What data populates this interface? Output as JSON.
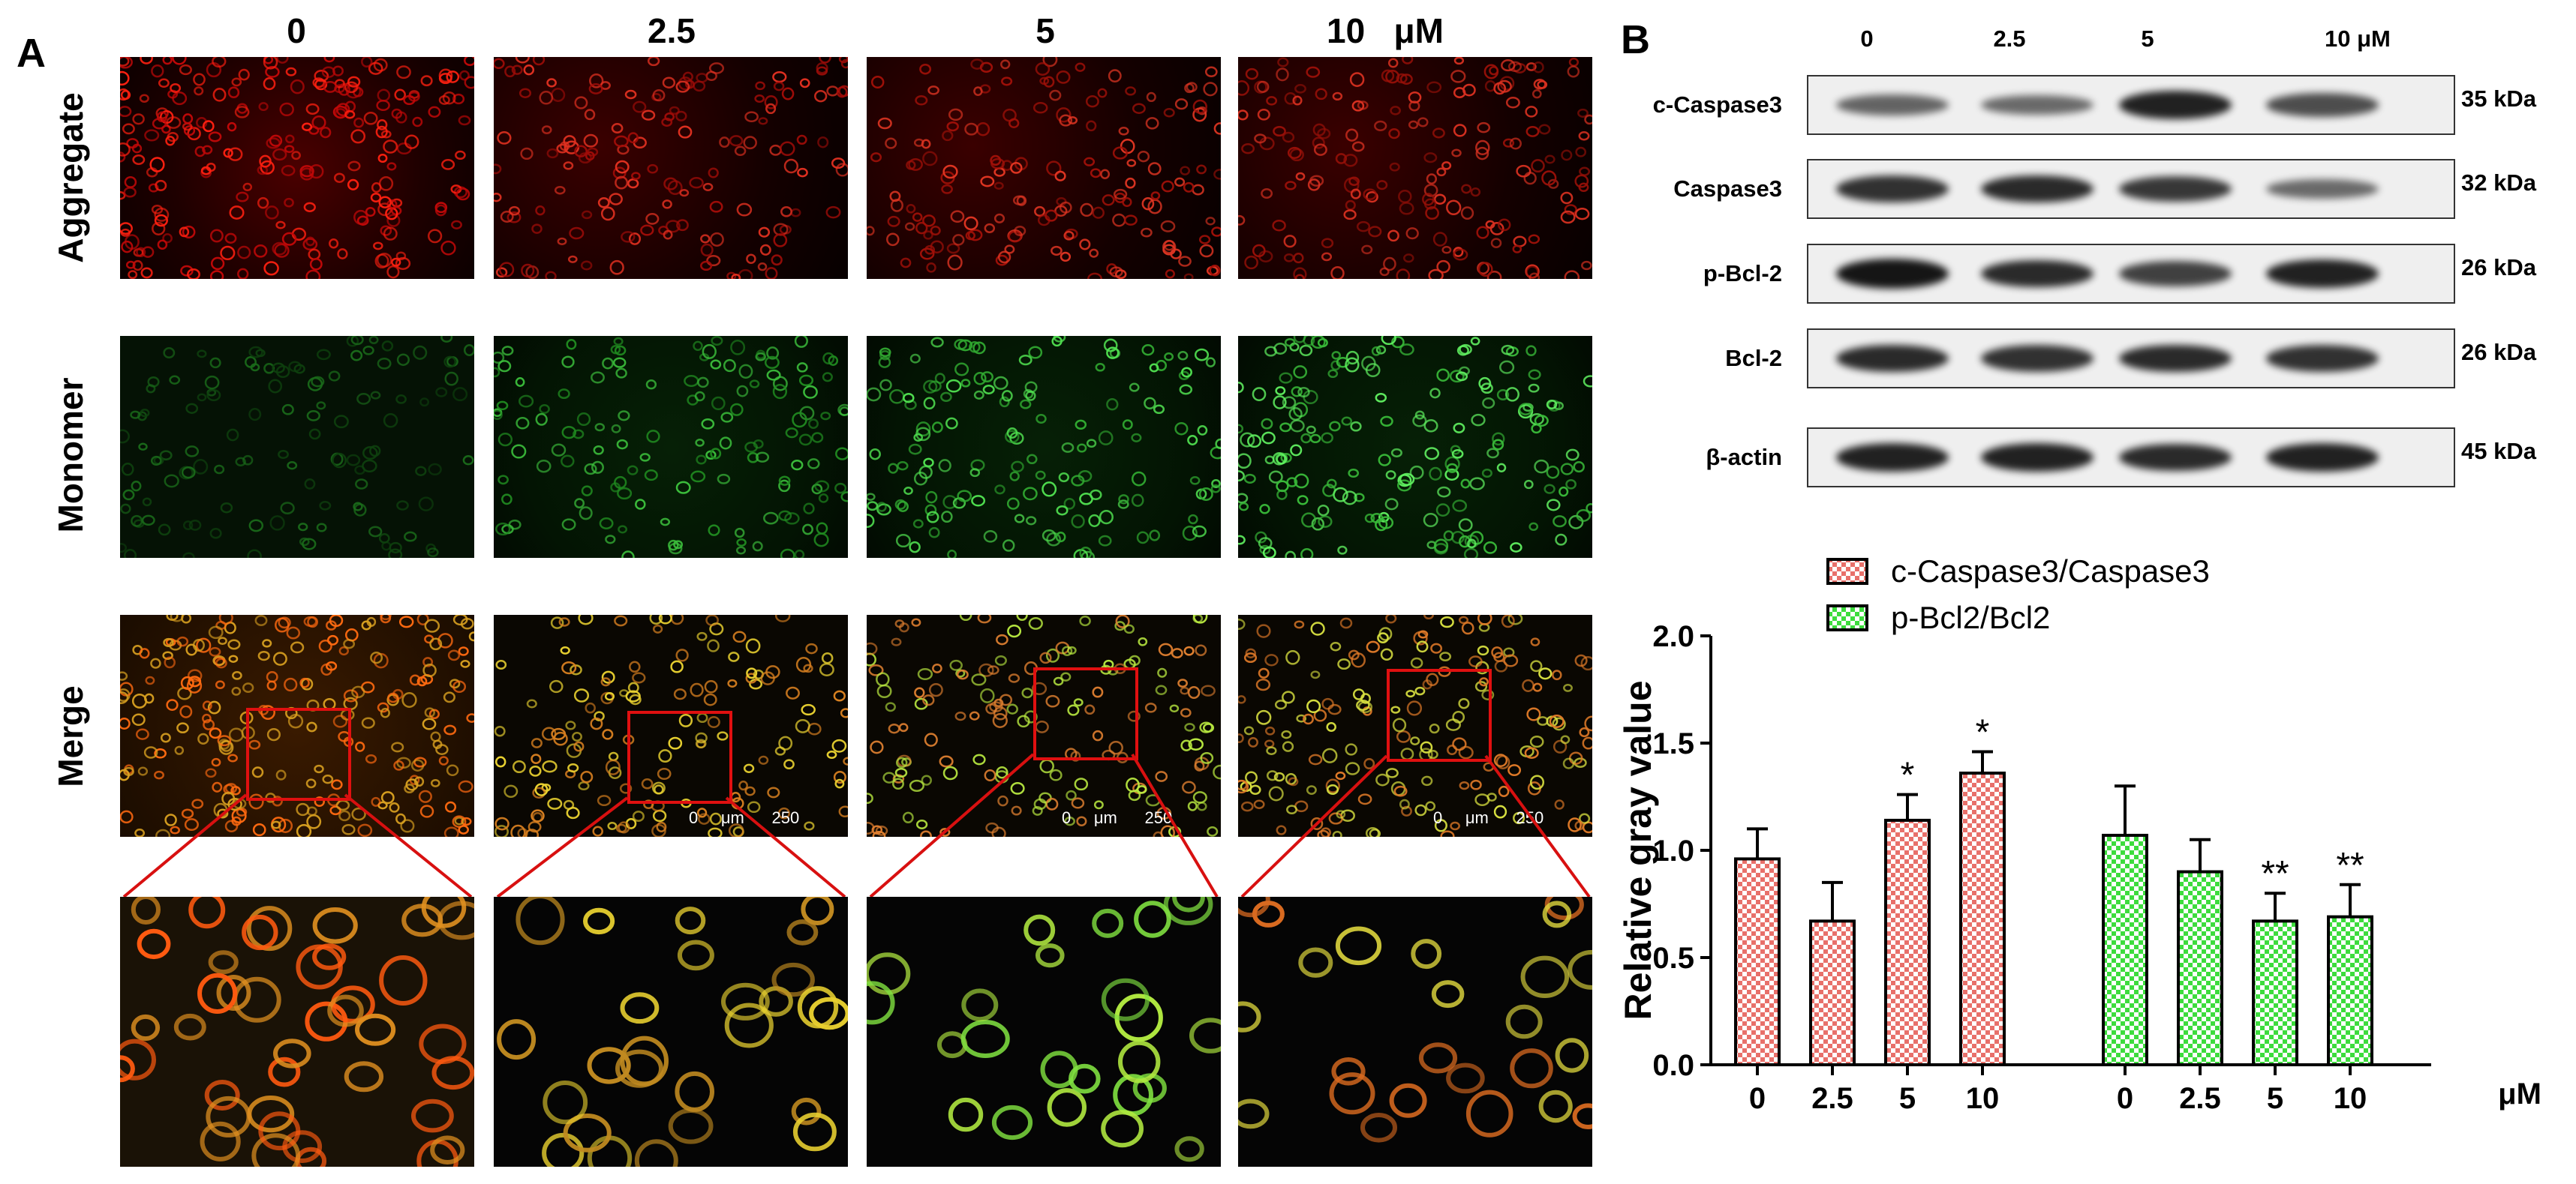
{
  "panel_a": {
    "letter": "A",
    "columns": [
      "0",
      "2.5",
      "5",
      "10"
    ],
    "unit": "μM",
    "rows": [
      "Aggregate",
      "Monomer",
      "Merge"
    ],
    "scale_labels": [
      "0",
      "μm",
      "250"
    ]
  },
  "panel_b": {
    "letter": "B",
    "lanes": [
      "0",
      "2.5",
      "5",
      "10 μM"
    ],
    "blots": [
      {
        "protein": "c-Caspase3",
        "size": "35 kDa",
        "intensity": [
          0.45,
          0.4,
          0.9,
          0.6
        ]
      },
      {
        "protein": "Caspase3",
        "size": "32 kDa",
        "intensity": [
          0.8,
          0.85,
          0.75,
          0.4
        ]
      },
      {
        "protein": "p-Bcl-2",
        "size": "26 kDa",
        "intensity": [
          1.0,
          0.85,
          0.7,
          0.9
        ]
      },
      {
        "protein": "Bcl-2",
        "size": "26 kDa",
        "intensity": [
          0.85,
          0.8,
          0.85,
          0.8
        ]
      },
      {
        "protein": "β-actin",
        "size": "45 kDa",
        "intensity": [
          0.9,
          0.9,
          0.85,
          0.9
        ]
      }
    ]
  },
  "chart_data": {
    "type": "bar",
    "ylabel": "Relative gray value",
    "ylim": [
      0,
      2.0
    ],
    "yticks": [
      "0.0",
      "0.5",
      "1.0",
      "1.5",
      "2.0"
    ],
    "x_unit": "μM",
    "categories": [
      "0",
      "2.5",
      "5",
      "10"
    ],
    "series": [
      {
        "name": "c-Caspase3/Caspase3",
        "color": "#e8706a",
        "values": [
          0.96,
          0.67,
          1.14,
          1.36
        ],
        "errors": [
          0.14,
          0.18,
          0.12,
          0.1
        ],
        "sig": [
          "",
          "",
          "*",
          "*"
        ]
      },
      {
        "name": "p-Bcl2/Bcl2",
        "color": "#3ddc3d",
        "values": [
          1.07,
          0.9,
          0.67,
          0.69
        ],
        "errors": [
          0.23,
          0.15,
          0.13,
          0.15
        ],
        "sig": [
          "",
          "",
          "**",
          "**"
        ]
      }
    ]
  }
}
